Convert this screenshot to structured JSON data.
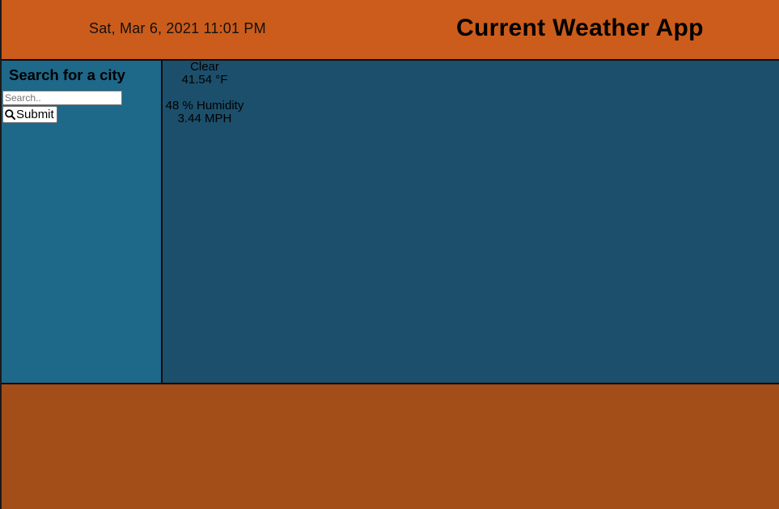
{
  "header": {
    "datetime": "Sat, Mar 6, 2021 11:01 PM",
    "title": "Current Weather App"
  },
  "sidebar": {
    "heading": "Search for a city",
    "search_placeholder": "Search..",
    "search_value": "",
    "submit_label": "Submit",
    "submit_icon": "search-icon"
  },
  "weather": {
    "condition": "Clear",
    "temperature": "41.54 °F",
    "humidity": "48 % Humidity",
    "wind": "3.44 MPH"
  },
  "colors": {
    "header_bg": "#cc5c1b",
    "sidebar_bg": "#1e6889",
    "content_bg": "#1c4f6b",
    "footer_bg": "#a34d18"
  }
}
